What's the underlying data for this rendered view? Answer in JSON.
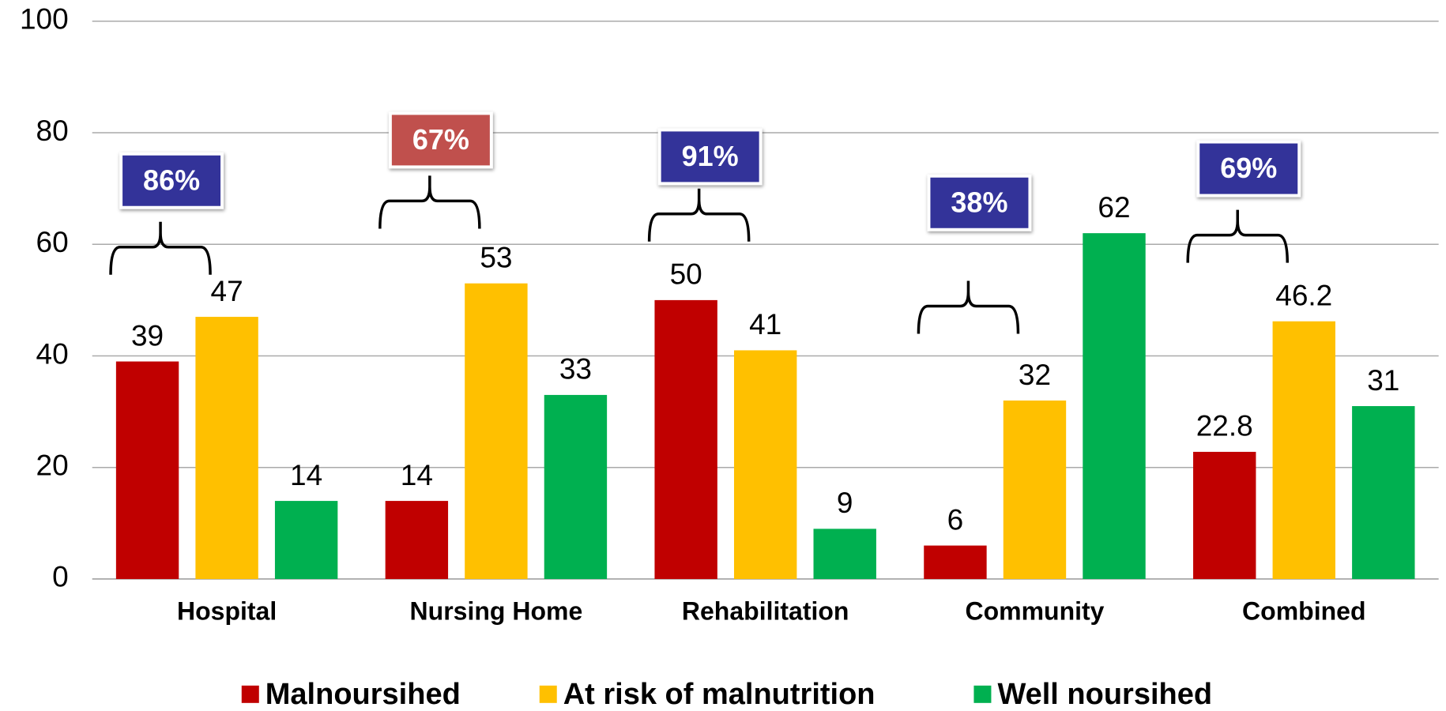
{
  "chart_data": {
    "type": "bar",
    "categories": [
      "Hospital",
      "Nursing Home",
      "Rehabilitation",
      "Community",
      "Combined"
    ],
    "series": [
      {
        "name": "Malnoursihed",
        "color": "#c00000",
        "values": [
          39,
          14,
          50,
          6,
          22.8
        ]
      },
      {
        "name": "At risk of malnutrition",
        "color": "#ffc000",
        "values": [
          47,
          53,
          41,
          32,
          46.2
        ]
      },
      {
        "name": "Well noursihed",
        "color": "#00b050",
        "values": [
          14,
          33,
          9,
          62,
          31
        ]
      }
    ],
    "ylim": [
      0,
      100
    ],
    "yticks": [
      0,
      20,
      40,
      60,
      80,
      100
    ],
    "grid": true,
    "legend": "bottom",
    "annotations": [
      {
        "text": "86%",
        "color": "#333399"
      },
      {
        "text": "67%",
        "color": "#c0504d"
      },
      {
        "text": "91%",
        "color": "#333399"
      },
      {
        "text": "38%",
        "color": "#333399"
      },
      {
        "text": "69%",
        "color": "#333399"
      }
    ]
  }
}
